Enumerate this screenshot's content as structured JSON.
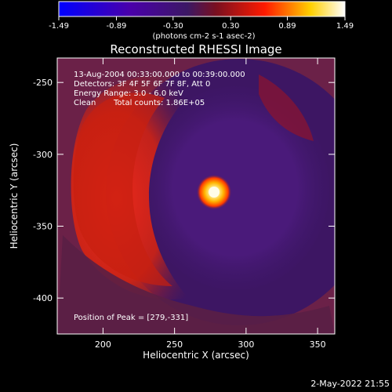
{
  "colorbar": {
    "ticks": [
      {
        "value": -1.49,
        "label": "-1.49"
      },
      {
        "value": -0.89,
        "label": "-0.89"
      },
      {
        "value": -0.3,
        "label": "-0.30"
      },
      {
        "value": 0.3,
        "label": "0.30"
      },
      {
        "value": 0.89,
        "label": "0.89"
      },
      {
        "value": 1.49,
        "label": "1.49"
      }
    ],
    "unit_label": "(photons cm-2 s-1 asec-2)"
  },
  "chart_data": {
    "type": "heatmap",
    "title": "Reconstructed RHESSI Image",
    "xlabel": "Heliocentric X (arcsec)",
    "ylabel": "Heliocentric Y (arcsec)",
    "xlim": [
      168,
      362
    ],
    "ylim": [
      -425,
      -233
    ],
    "xticks": [
      200,
      250,
      300,
      350
    ],
    "yticks": [
      -250,
      -300,
      -350,
      -400
    ],
    "colorbar_range": [
      -1.49,
      1.49
    ],
    "annotations": [
      "13-Aug-2004 00:33:00.000 to 00:39:00.000",
      "Detectors: 3F 4F 5F 6F 7F 8F, Att 0",
      "Energy Range: 3.0 - 6.0 keV",
      "Clean",
      "Total counts: 1.86E+05"
    ],
    "peak": {
      "label": "Position of Peak = [279,-331]",
      "x": 279,
      "y": -331
    },
    "footer_text": "2-May-2022 21:55",
    "regions": [
      {
        "name": "red-arc-left",
        "level": 0.35
      },
      {
        "name": "background",
        "level": 0.15
      },
      {
        "name": "peak-source",
        "level": 1.49
      }
    ]
  }
}
